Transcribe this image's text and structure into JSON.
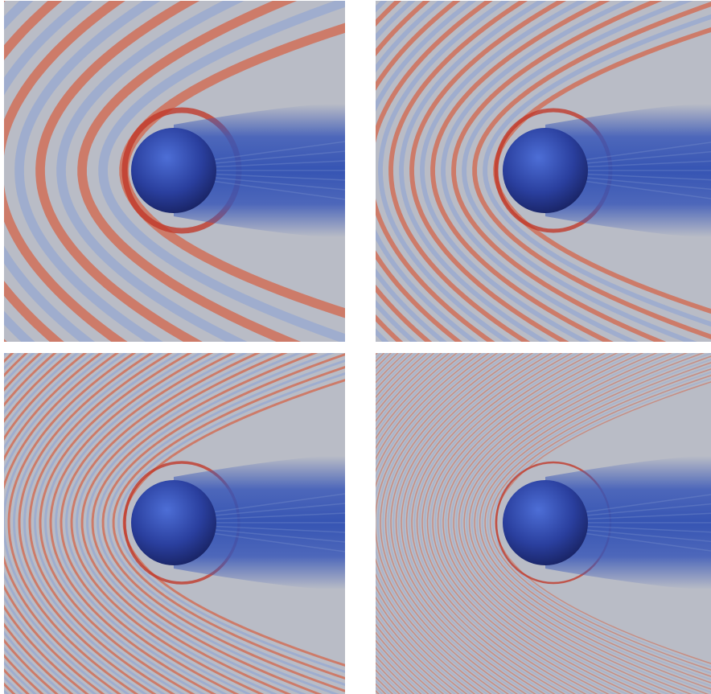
{
  "figure": {
    "panels": [
      {
        "id": "panel-1",
        "wave_density": 1
      },
      {
        "id": "panel-2",
        "wave_density": 2
      },
      {
        "id": "panel-3",
        "wave_density": 4
      },
      {
        "id": "panel-4",
        "wave_density": 8
      }
    ],
    "colors": {
      "background_neutral": "#b9bcc6",
      "wave_crest": "#d4664a",
      "wave_trough": "#8ea3d3",
      "wake": "#3a58b8",
      "sphere_light": "#4d6ed6",
      "sphere_dark": "#141c55"
    }
  }
}
